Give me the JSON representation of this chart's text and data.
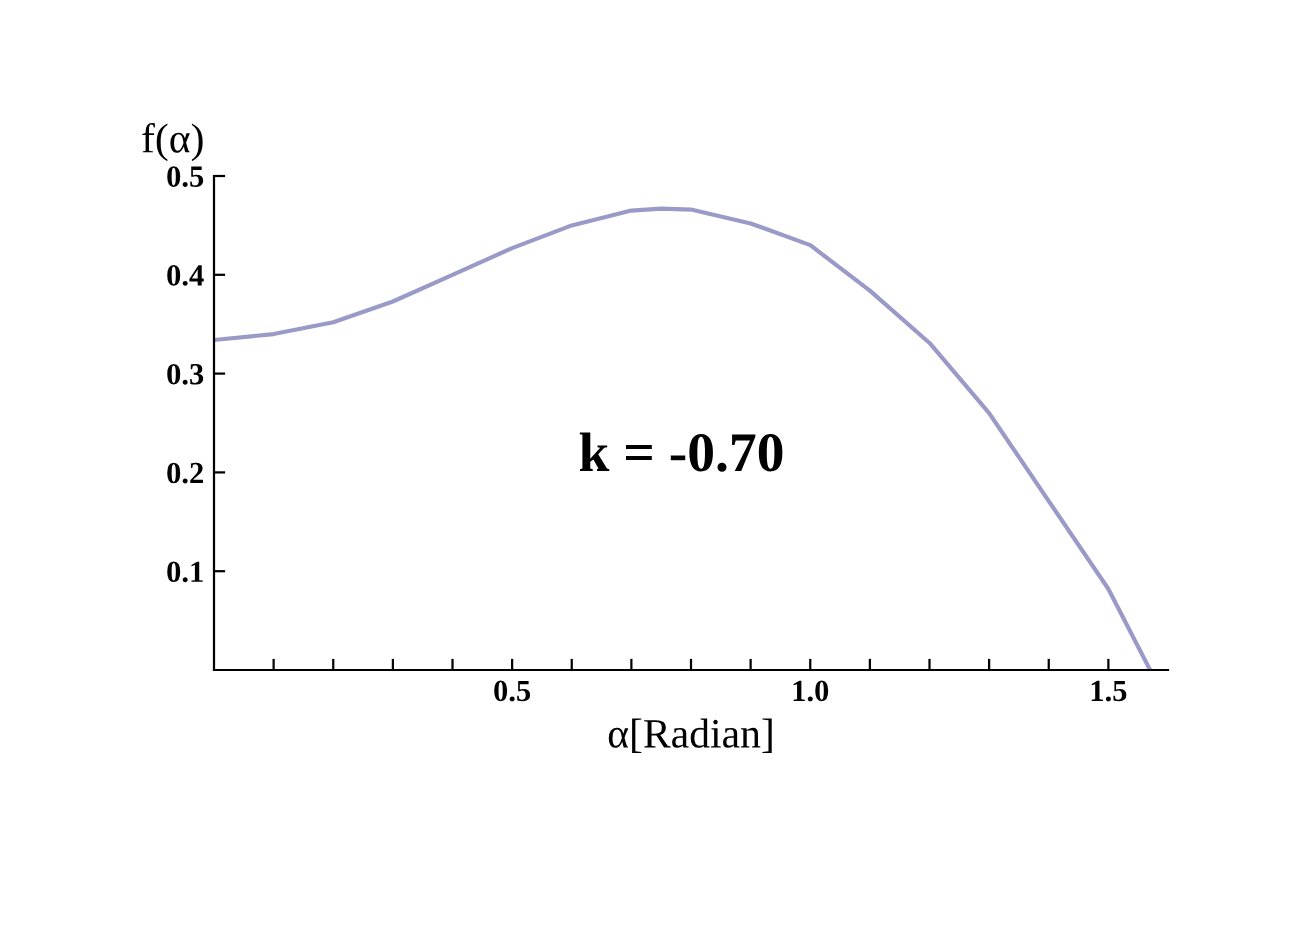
{
  "chart_data": {
    "type": "line",
    "xlabel": "α[Radian]",
    "ylabel": "f(α)",
    "annotations": [
      "k = -0.70"
    ],
    "x": [
      0,
      0.1,
      0.2,
      0.3,
      0.4,
      0.5,
      0.6,
      0.7,
      0.75,
      0.8,
      0.9,
      1.0,
      1.1,
      1.2,
      1.3,
      1.4,
      1.5,
      1.57
    ],
    "series": [
      {
        "color": "#9a9ac8",
        "values": [
          0.334,
          0.34,
          0.352,
          0.373,
          0.4,
          0.427,
          0.45,
          0.465,
          0.467,
          0.466,
          0.452,
          0.43,
          0.384,
          0.331,
          0.26,
          0.171,
          0.082,
          0.0
        ]
      }
    ],
    "xlim": [
      0,
      1.6
    ],
    "ylim": [
      0,
      0.5
    ],
    "xticks": [
      {
        "value": 0.1,
        "label": null
      },
      {
        "value": 0.2,
        "label": null
      },
      {
        "value": 0.3,
        "label": null
      },
      {
        "value": 0.4,
        "label": null
      },
      0.5,
      {
        "value": 0.6,
        "label": null
      },
      {
        "value": 0.7,
        "label": null
      },
      {
        "value": 0.8,
        "label": null
      },
      {
        "value": 0.9,
        "label": null
      },
      {
        "value": 1.0,
        "label": "1.0"
      },
      {
        "value": 1.1,
        "label": null
      },
      {
        "value": 1.2,
        "label": null
      },
      {
        "value": 1.3,
        "label": null
      },
      {
        "value": 1.4,
        "label": null
      },
      1.5
    ],
    "yticks": [
      0.1,
      0.2,
      0.3,
      0.4,
      0.5
    ],
    "grid": false,
    "legend": false,
    "marker": "none",
    "line_style": "solid"
  }
}
